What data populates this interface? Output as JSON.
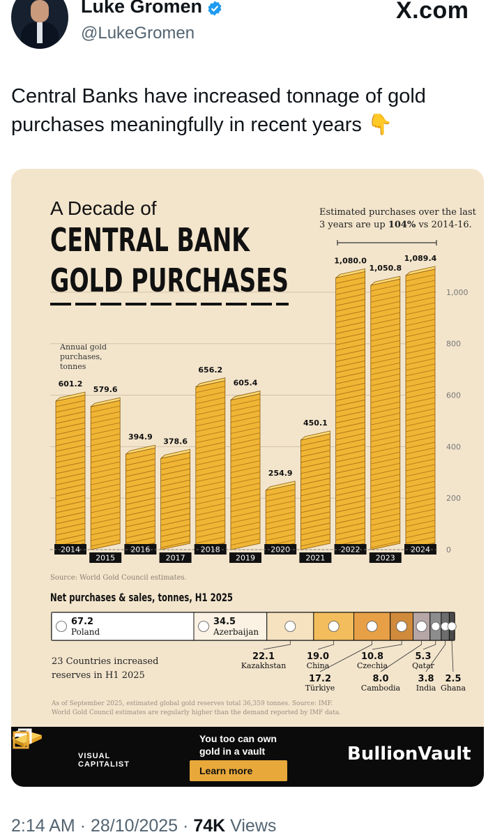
{
  "author": {
    "name": "Luke Gromen",
    "handle": "@LukeGromen"
  },
  "site_label": "X.com",
  "tweet": {
    "text": "Central Banks have increased tonnage of gold purchases meaningfully in recent years 👇"
  },
  "infographic": {
    "title_line1": "A Decade of",
    "title_line2": "CENTRAL BANK",
    "title_line3": "GOLD PURCHASES",
    "annotation_line1": "Estimated purchases over the last",
    "annotation_line2_pre": "3 years are up ",
    "annotation_line2_bold": "104%",
    "annotation_line2_post": " vs 2014-16.",
    "y_label_lines": [
      "Annual gold",
      "purchases,",
      "tonnes"
    ],
    "source": "Source: World Gold Council estimates.",
    "net_title": "Net purchases & sales, tonnes, H1 2025",
    "net_note_lines": [
      "23 Countries increased",
      "reserves in H1 2025"
    ],
    "footnote_lines": [
      "As of September 2025, estimated global gold reserves total 36,359 tonnes. Source: IMF.",
      "World Gold Council estimates are regularly higher than the demand reported by IMF data."
    ],
    "net_purchases": [
      {
        "country": "Poland",
        "value": "67.2",
        "tonnes": 67.2,
        "color": "#ffffff"
      },
      {
        "country": "Azerbaijan",
        "value": "34.5",
        "tonnes": 34.5,
        "color": "#fbf2e3"
      },
      {
        "country": "Kazakhstan",
        "value": "22.1",
        "tonnes": 22.1,
        "color": "#f6e2bf"
      },
      {
        "country": "China",
        "value": "19.0",
        "tonnes": 19.0,
        "color": "#f3bd5e"
      },
      {
        "country": "Türkiye",
        "value": "17.2",
        "tonnes": 17.2,
        "color": "#e7a046"
      },
      {
        "country": "Czechia",
        "value": "10.8",
        "tonnes": 10.8,
        "color": "#d08a3c"
      },
      {
        "country": "Cambodia",
        "value": "8.0",
        "tonnes": 8.0,
        "color": "#b6a6a6"
      },
      {
        "country": "Qatar",
        "value": "5.3",
        "tonnes": 5.3,
        "color": "#8d8d8d"
      },
      {
        "country": "India",
        "value": "3.8",
        "tonnes": 3.8,
        "color": "#6d6d6d"
      },
      {
        "country": "Ghana",
        "value": "2.5",
        "tonnes": 2.5,
        "color": "#4a4a4a"
      }
    ],
    "banner": {
      "vc_line1": "VISUAL",
      "vc_line2": "CAPITALIST",
      "promo_line1": "You too can own",
      "promo_line2": "gold in a vault",
      "cta": "Learn more",
      "brand": "BullionVault"
    }
  },
  "chart_data": {
    "type": "bar",
    "title": "A Decade of CENTRAL BANK GOLD PURCHASES",
    "ylabel": "Annual gold purchases, tonnes",
    "categories": [
      "2014",
      "2015",
      "2016",
      "2017",
      "2018",
      "2019",
      "2020",
      "2021",
      "2022",
      "2023",
      "2024"
    ],
    "values": [
      601.2,
      579.6,
      394.9,
      378.6,
      656.2,
      605.4,
      254.9,
      450.1,
      1080.0,
      1050.8,
      1089.4
    ],
    "value_labels": [
      "601.2",
      "579.6",
      "394.9",
      "378.6",
      "656.2",
      "605.4",
      "254.9",
      "450.1",
      "1,080.0",
      "1,050.8",
      "1,089.4"
    ],
    "yticks": [
      0,
      200,
      400,
      600,
      800,
      1000
    ],
    "ytick_labels": [
      "0",
      "200",
      "400",
      "600",
      "800",
      "1,000"
    ],
    "ylim": [
      0,
      1100
    ],
    "grid": true,
    "bar_color": "#f0b534"
  },
  "footer": {
    "time": "2:14 AM",
    "date": "28/10/2025",
    "views_count": "74K",
    "views_label": "Views",
    "sep": "·"
  }
}
